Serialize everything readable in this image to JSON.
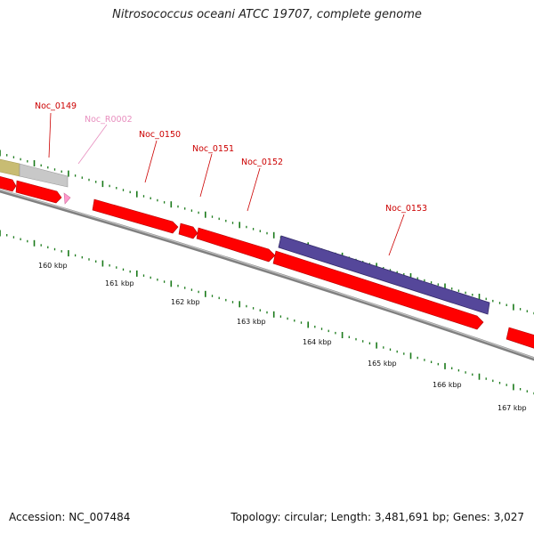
{
  "title": "Nitrosococcus oceani ATCC 19707, complete genome",
  "footer": {
    "accession": "Accession: NC_007484",
    "summary": "Topology: circular; Length: 3,481,691 bp; Genes: 3,027"
  },
  "colors": {
    "cds": "#ff0000",
    "rna": "#ff99cc",
    "other_gene": "#c0c0c0",
    "misc_feature": "#c8bc73",
    "repeat_region": "#55479a",
    "backbone": "#808080",
    "tick": "#1a7a1a",
    "label": "#cc0000",
    "rna_label": "#e88fbf"
  },
  "gene_labels": [
    {
      "id": "Noc_0149",
      "text": "Noc_0149",
      "kind": "cds"
    },
    {
      "id": "Noc_R0002",
      "text": "Noc_R0002",
      "kind": "rna"
    },
    {
      "id": "Noc_0150",
      "text": "Noc_0150",
      "kind": "cds"
    },
    {
      "id": "Noc_0151",
      "text": "Noc_0151",
      "kind": "cds"
    },
    {
      "id": "Noc_0152",
      "text": "Noc_0152",
      "kind": "cds"
    },
    {
      "id": "Noc_0153",
      "text": "Noc_0153",
      "kind": "cds"
    }
  ],
  "kbp_labels": [
    "160 kbp",
    "161 kbp",
    "162 kbp",
    "163 kbp",
    "164 kbp",
    "165 kbp",
    "166 kbp",
    "167 kbp"
  ]
}
